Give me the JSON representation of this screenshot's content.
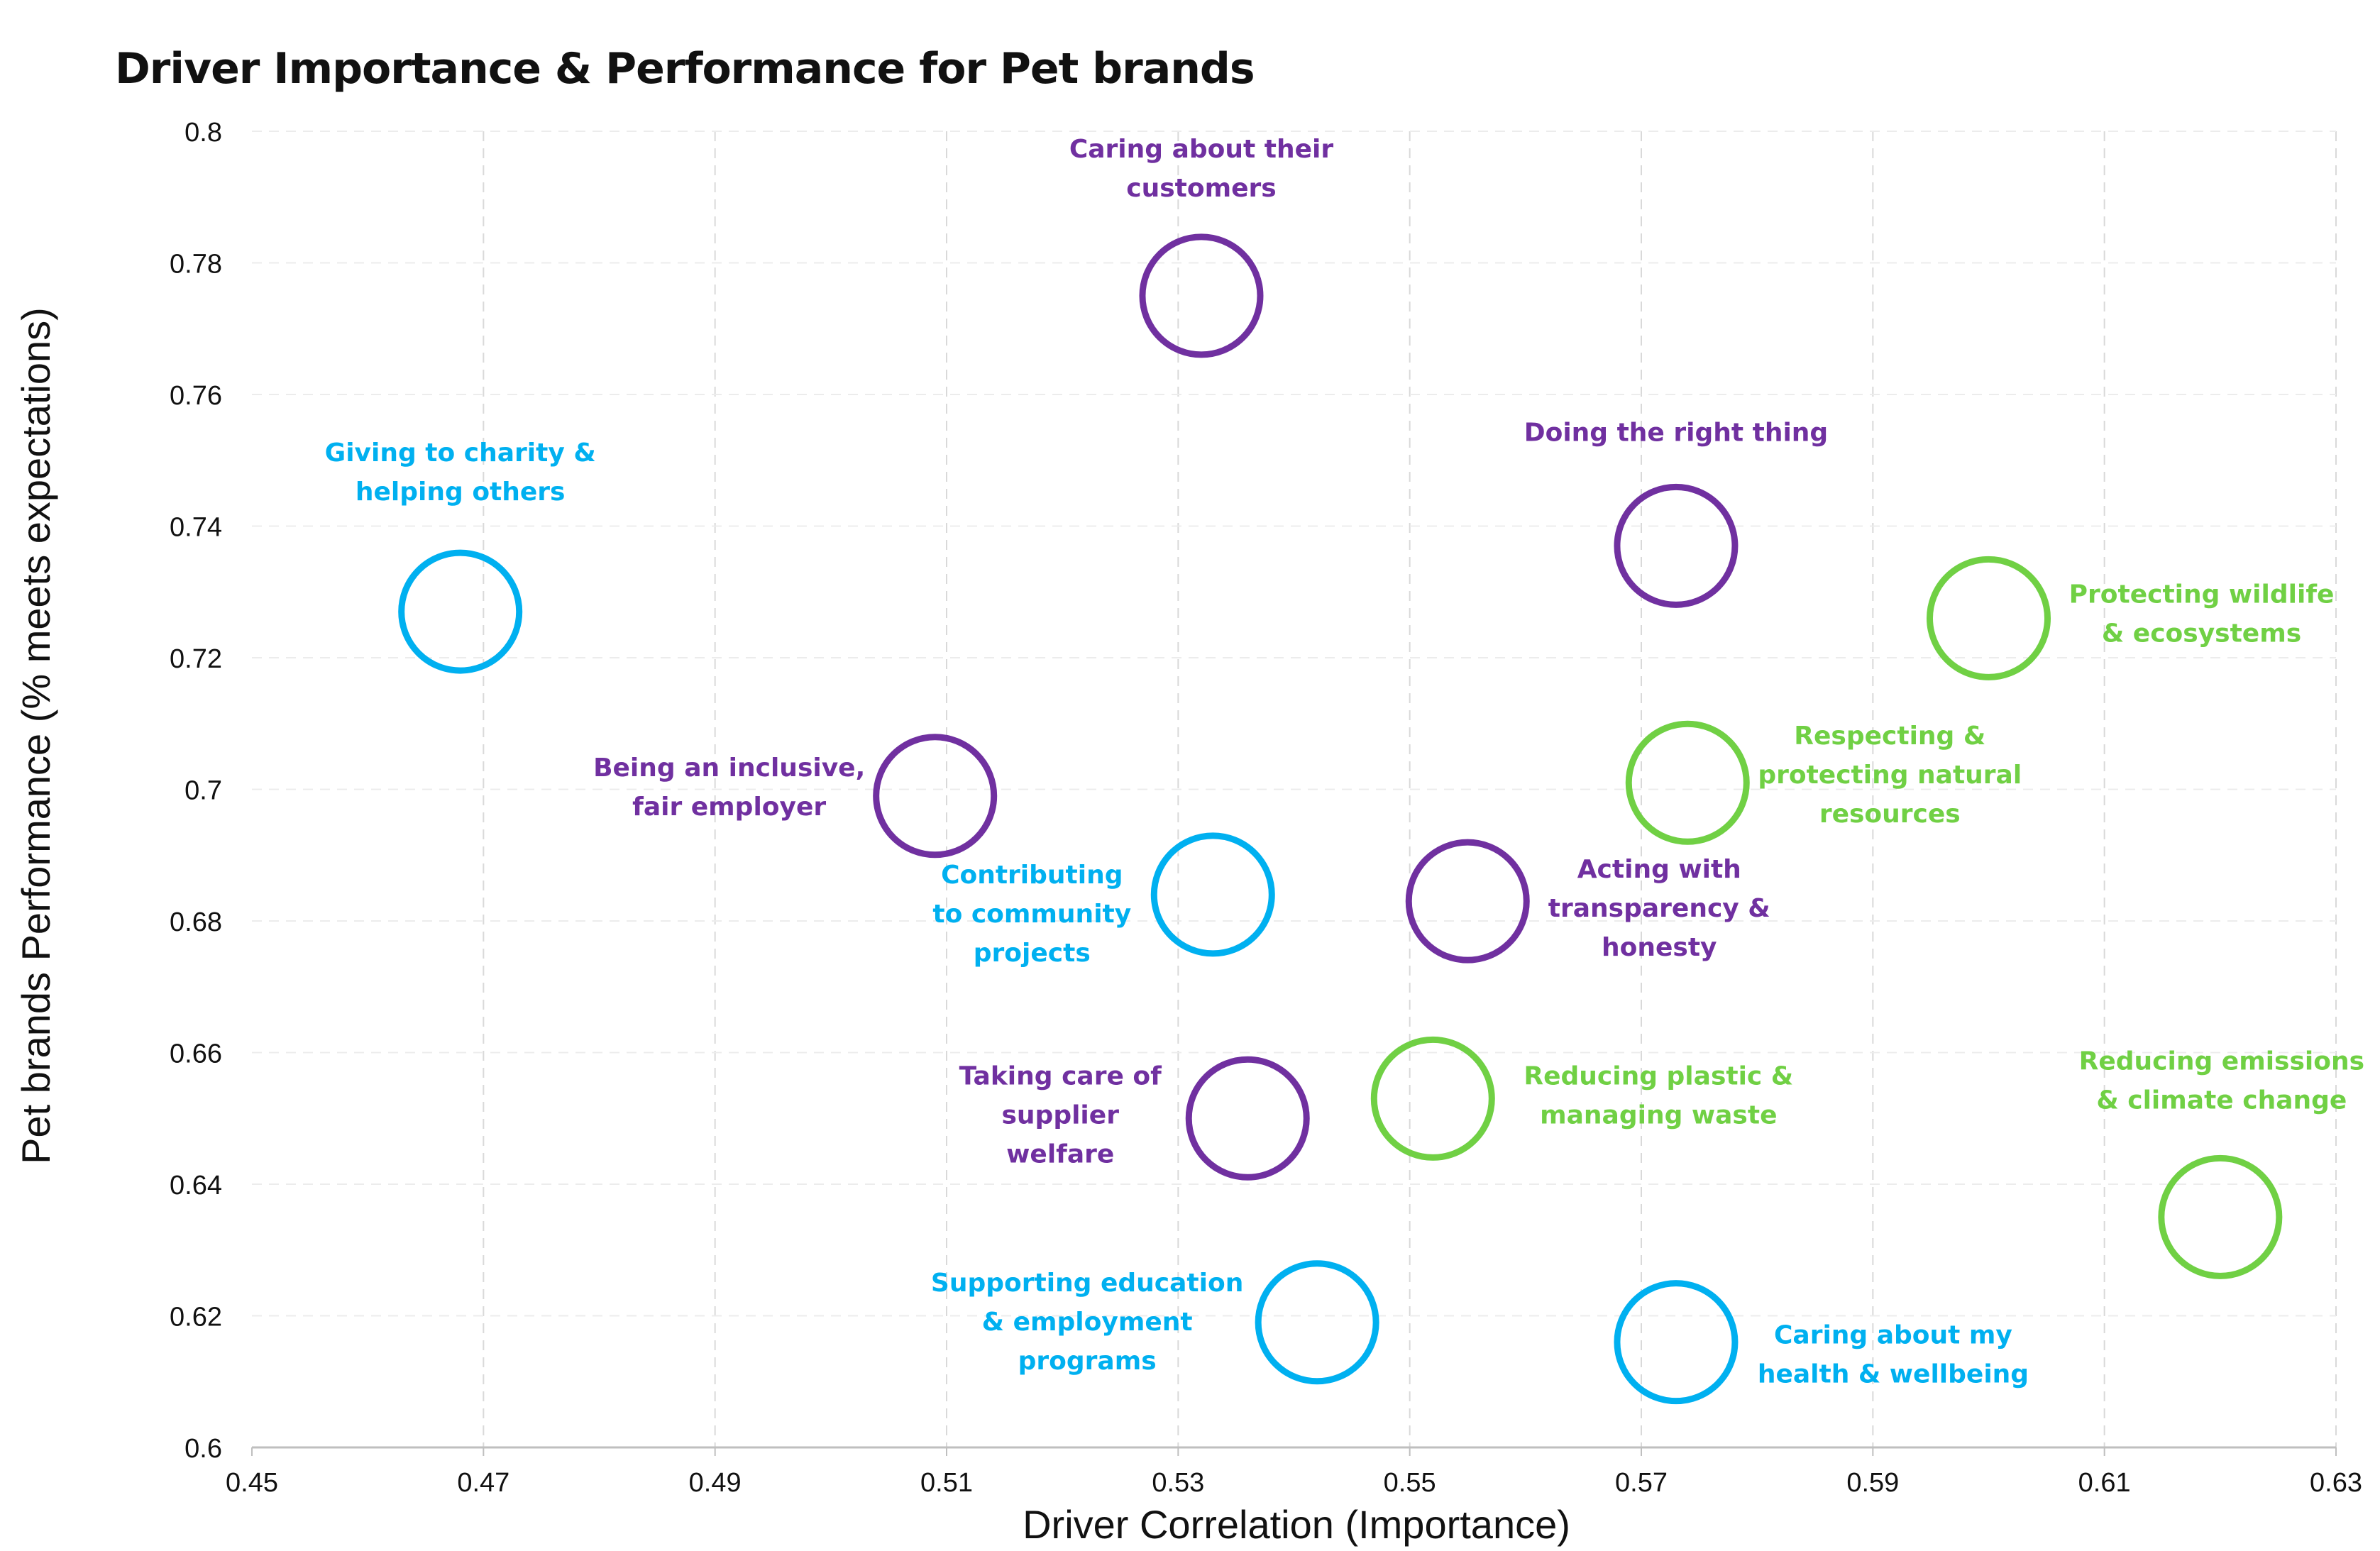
{
  "chart_data": {
    "type": "scatter",
    "title": "Driver Importance & Performance for Pet brands",
    "xlabel": "Driver Correlation (Importance)",
    "ylabel": "Pet brands Performance (% meets expectations)",
    "xlim": [
      0.45,
      0.63
    ],
    "ylim": [
      0.6,
      0.8
    ],
    "xticks": [
      "0.45",
      "0.47",
      "0.49",
      "0.51",
      "0.53",
      "0.55",
      "0.57",
      "0.59",
      "0.61",
      "0.63"
    ],
    "yticks": [
      "0.6",
      "0.62",
      "0.64",
      "0.66",
      "0.68",
      "0.7",
      "0.72",
      "0.74",
      "0.76",
      "0.78",
      "0.8"
    ],
    "grid": true,
    "colors": {
      "purple": "#7030a0",
      "blue": "#00b0f0",
      "green": "#70d044"
    },
    "points": [
      {
        "label": "Caring about their customers",
        "x": 0.532,
        "y": 0.775,
        "color": "purple"
      },
      {
        "label": "Giving to charity & helping others",
        "x": 0.468,
        "y": 0.727,
        "color": "blue"
      },
      {
        "label": "Doing the right thing",
        "x": 0.573,
        "y": 0.737,
        "color": "purple"
      },
      {
        "label": "Protecting wildlife & ecosystems",
        "x": 0.6,
        "y": 0.726,
        "color": "green"
      },
      {
        "label": "Being an inclusive, fair employer",
        "x": 0.509,
        "y": 0.699,
        "color": "purple"
      },
      {
        "label": "Respecting & protecting natural resources",
        "x": 0.574,
        "y": 0.701,
        "color": "green"
      },
      {
        "label": "Contributing to community projects",
        "x": 0.533,
        "y": 0.684,
        "color": "blue"
      },
      {
        "label": "Acting with transparency & honesty",
        "x": 0.555,
        "y": 0.683,
        "color": "purple"
      },
      {
        "label": "Taking care of supplier welfare",
        "x": 0.536,
        "y": 0.65,
        "color": "purple"
      },
      {
        "label": "Reducing plastic & managing waste",
        "x": 0.552,
        "y": 0.653,
        "color": "green"
      },
      {
        "label": "Reducing emissions & climate change",
        "x": 0.62,
        "y": 0.635,
        "color": "green"
      },
      {
        "label": "Supporting education & employment programs",
        "x": 0.542,
        "y": 0.619,
        "color": "blue"
      },
      {
        "label": "Caring about my health & wellbeing",
        "x": 0.573,
        "y": 0.616,
        "color": "blue"
      }
    ]
  }
}
